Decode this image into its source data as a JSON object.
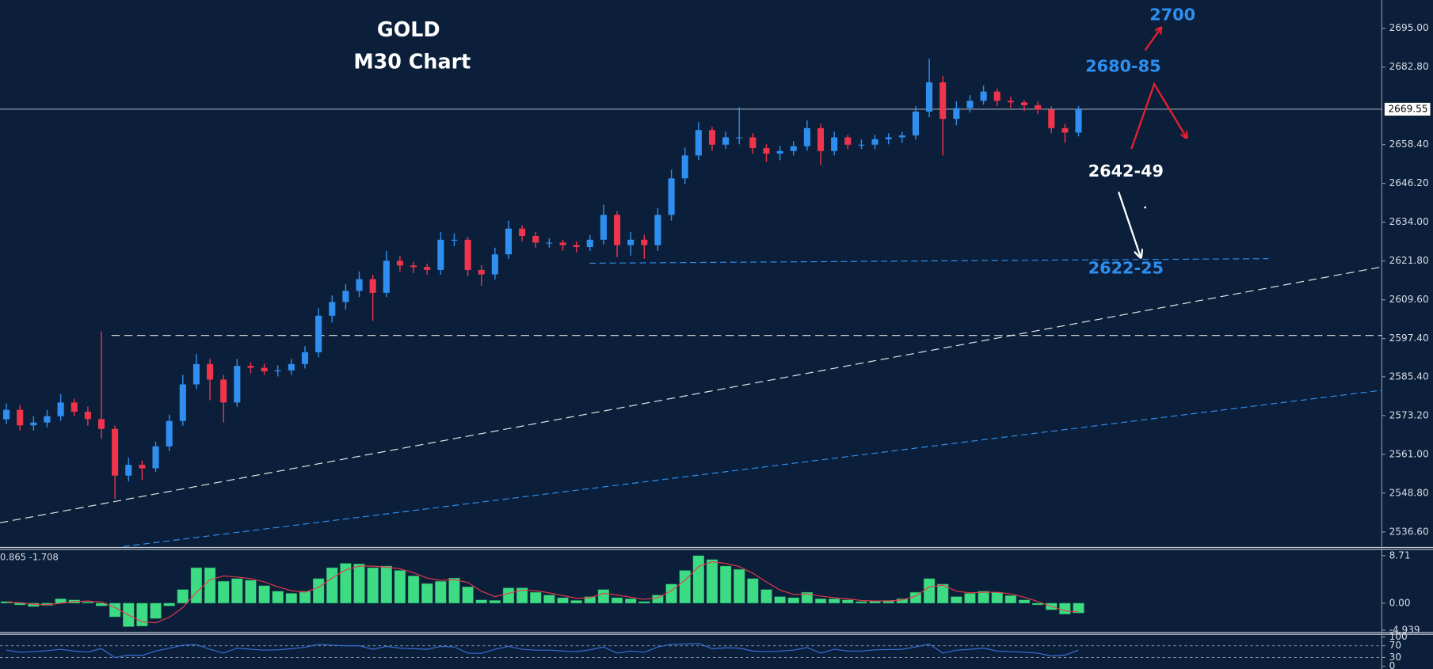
{
  "chart_data": [
    {
      "type": "candlestick",
      "title": "GOLD",
      "subtitle": "M30 Chart",
      "annotations": [
        "2700",
        "2680-85",
        "2642-49",
        "2622-25"
      ],
      "current_price": 2669.55,
      "up_color": "#2f8ff0",
      "down_color": "#f0344c",
      "open": [
        2572.0,
        2575.0,
        2570.1,
        2571.0,
        2573.0,
        2577.3,
        2574.4,
        2572.1,
        2569.0,
        2554.3,
        2557.7,
        2556.6,
        2563.5,
        2571.5,
        2583.0,
        2589.4,
        2584.5,
        2577.3,
        2588.8,
        2588.2,
        2587.1,
        2587.4,
        2589.4,
        2593.1,
        2604.6,
        2608.9,
        2612.4,
        2616.1,
        2611.8,
        2621.9,
        2620.4,
        2619.9,
        2619.0,
        2628.5,
        2628.5,
        2619.0,
        2617.6,
        2623.9,
        2632.0,
        2629.7,
        2627.6,
        2627.6,
        2626.8,
        2626.2,
        2628.5,
        2636.3,
        2626.8,
        2628.5,
        2626.8,
        2636.3,
        2647.8,
        2655.0,
        2663.0,
        2658.4,
        2660.7,
        2660.7,
        2657.3,
        2655.6,
        2656.4,
        2657.9,
        2663.6,
        2656.4,
        2660.7,
        2658.4,
        2658.4,
        2660.1,
        2660.7,
        2661.3,
        2668.8,
        2678.0,
        2666.5,
        2669.9,
        2672.2,
        2675.1,
        2672.2,
        2671.7,
        2670.8,
        2669.4,
        2663.6,
        2662.2
      ],
      "high": [
        2577.0,
        2576.5,
        2573.0,
        2575.0,
        2580.0,
        2578.5,
        2576.0,
        2599.7,
        2570.0,
        2560.0,
        2559.0,
        2565.0,
        2573.5,
        2586.0,
        2592.5,
        2591.0,
        2586.0,
        2591.0,
        2590.0,
        2589.5,
        2589.0,
        2591.0,
        2595.0,
        2607.0,
        2611.0,
        2614.5,
        2618.5,
        2617.5,
        2625.0,
        2623.5,
        2621.5,
        2621.0,
        2631.0,
        2630.5,
        2629.5,
        2620.5,
        2626.0,
        2634.5,
        2633.0,
        2631.0,
        2629.0,
        2628.5,
        2628.0,
        2630.0,
        2639.5,
        2637.5,
        2631.0,
        2630.0,
        2638.5,
        2650.5,
        2657.5,
        2665.5,
        2664.0,
        2662.5,
        2670.2,
        2662.0,
        2658.5,
        2658.0,
        2659.5,
        2666.0,
        2665.0,
        2662.5,
        2661.5,
        2660.0,
        2661.5,
        2662.0,
        2662.5,
        2670.5,
        2685.5,
        2680.0,
        2672.0,
        2674.0,
        2677.0,
        2676.0,
        2673.5,
        2672.5,
        2672.0,
        2670.5,
        2665.0,
        2670.5
      ],
      "low": [
        2570.5,
        2568.5,
        2568.5,
        2569.5,
        2571.5,
        2573.0,
        2570.0,
        2566.0,
        2547.0,
        2552.5,
        2553.0,
        2555.5,
        2562.0,
        2570.0,
        2581.5,
        2578.0,
        2571.0,
        2576.0,
        2586.5,
        2586.0,
        2585.5,
        2586.0,
        2588.0,
        2591.5,
        2602.5,
        2606.5,
        2610.5,
        2603.0,
        2610.5,
        2618.5,
        2618.0,
        2617.5,
        2617.5,
        2626.5,
        2617.0,
        2614.0,
        2616.0,
        2622.5,
        2628.0,
        2626.0,
        2626.0,
        2625.0,
        2624.5,
        2625.0,
        2627.0,
        2623.0,
        2623.5,
        2622.5,
        2625.0,
        2634.5,
        2646.0,
        2653.5,
        2656.5,
        2657.0,
        2658.5,
        2655.5,
        2653.0,
        2653.5,
        2655.0,
        2656.5,
        2652.0,
        2655.0,
        2657.0,
        2657.0,
        2657.0,
        2658.5,
        2659.0,
        2660.0,
        2667.0,
        2655.0,
        2664.5,
        2668.5,
        2671.0,
        2670.5,
        2670.0,
        2669.0,
        2668.0,
        2662.0,
        2659.0,
        2661.0
      ],
      "close": [
        2575.0,
        2570.1,
        2571.0,
        2573.0,
        2577.3,
        2574.4,
        2572.1,
        2569.0,
        2554.3,
        2557.7,
        2556.6,
        2563.5,
        2571.5,
        2583.0,
        2589.4,
        2584.5,
        2577.3,
        2588.8,
        2588.2,
        2587.1,
        2587.4,
        2589.4,
        2593.1,
        2604.6,
        2608.9,
        2612.4,
        2616.1,
        2611.8,
        2621.9,
        2620.4,
        2619.9,
        2619.0,
        2628.5,
        2628.5,
        2619.0,
        2617.6,
        2623.9,
        2632.0,
        2629.7,
        2627.6,
        2627.6,
        2626.8,
        2626.2,
        2628.5,
        2636.3,
        2626.8,
        2628.5,
        2626.8,
        2636.3,
        2647.8,
        2655.0,
        2663.0,
        2658.4,
        2660.7,
        2660.7,
        2657.3,
        2655.6,
        2656.4,
        2657.9,
        2663.6,
        2656.4,
        2660.7,
        2658.4,
        2658.4,
        2660.1,
        2660.7,
        2661.3,
        2668.8,
        2678.0,
        2666.5,
        2669.9,
        2672.2,
        2675.1,
        2672.2,
        2671.7,
        2670.8,
        2669.4,
        2663.6,
        2662.2,
        2669.5
      ],
      "ylim": [
        2532.0,
        2703.9
      ],
      "yticks": [
        {
          "value": 2695.0,
          "label": "2695.00"
        },
        {
          "value": 2682.8,
          "label": "2682.80"
        },
        {
          "value": 2658.4,
          "label": "2658.40"
        },
        {
          "value": 2646.2,
          "label": "2646.20"
        },
        {
          "value": 2634.0,
          "label": "2634.00"
        },
        {
          "value": 2621.8,
          "label": "2621.80"
        },
        {
          "value": 2609.6,
          "label": "2609.60"
        },
        {
          "value": 2597.4,
          "label": "2597.40"
        },
        {
          "value": 2585.4,
          "label": "2585.40"
        },
        {
          "value": 2573.2,
          "label": "2573.20"
        },
        {
          "value": 2561.0,
          "label": "2561.00"
        },
        {
          "value": 2548.8,
          "label": "2548.80"
        },
        {
          "value": 2536.6,
          "label": "2536.60"
        }
      ]
    },
    {
      "type": "macd",
      "label": "0.865 -1.708",
      "color": "#3ddc84",
      "signal_color": "#e8394a",
      "values": [
        0.3,
        -0.3,
        -0.6,
        -0.4,
        0.8,
        0.6,
        0.2,
        -0.5,
        -2.5,
        -4.3,
        -4.2,
        -2.8,
        -0.5,
        2.5,
        6.5,
        6.5,
        4.0,
        4.5,
        4.2,
        3.2,
        2.2,
        1.8,
        2.2,
        4.5,
        6.5,
        7.3,
        7.2,
        6.5,
        6.8,
        6.0,
        5.0,
        3.6,
        4.0,
        4.6,
        3.0,
        0.6,
        0.5,
        2.8,
        2.8,
        2.0,
        1.5,
        1.0,
        0.5,
        1.2,
        2.5,
        1.0,
        0.8,
        0.3,
        1.5,
        3.5,
        6.0,
        8.7,
        8.0,
        6.8,
        6.2,
        4.5,
        2.5,
        1.2,
        1.0,
        2.0,
        0.8,
        0.8,
        0.6,
        0.3,
        0.4,
        0.5,
        0.8,
        2.0,
        4.5,
        3.5,
        1.2,
        1.8,
        2.2,
        2.0,
        1.4,
        0.6,
        -0.3,
        -1.2,
        -2.0,
        -1.8
      ],
      "signal": [
        0.2,
        0.1,
        -0.2,
        -0.3,
        0.0,
        0.3,
        0.4,
        0.2,
        -0.8,
        -2.2,
        -3.4,
        -3.6,
        -2.6,
        -0.8,
        2.0,
        4.3,
        5.0,
        4.8,
        4.5,
        3.9,
        3.0,
        2.3,
        2.0,
        2.9,
        4.6,
        6.1,
        6.8,
        6.8,
        6.6,
        6.3,
        5.6,
        4.6,
        4.2,
        4.3,
        3.8,
        2.2,
        1.2,
        1.8,
        2.4,
        2.3,
        1.9,
        1.4,
        0.9,
        1.0,
        1.8,
        1.5,
        1.1,
        0.7,
        1.0,
        2.3,
        4.2,
        6.7,
        7.6,
        7.3,
        6.7,
        5.5,
        3.9,
        2.4,
        1.6,
        1.7,
        1.3,
        1.0,
        0.8,
        0.5,
        0.4,
        0.4,
        0.6,
        1.3,
        3.0,
        3.3,
        2.2,
        1.9,
        2.0,
        2.0,
        1.7,
        1.1,
        0.3,
        -0.6,
        -1.4,
        -1.6
      ],
      "ylim": [
        -5.36,
        9.88
      ],
      "yticks": [
        8.71,
        {
          "value": 0,
          "label": "0.00"
        },
        -4.939
      ]
    },
    {
      "type": "line",
      "color": "#3a6fd8",
      "values": [
        55,
        48,
        50,
        53,
        58,
        52,
        49,
        60,
        30,
        38,
        37,
        52,
        62,
        72,
        74,
        58,
        45,
        62,
        58,
        55,
        56,
        60,
        65,
        75,
        72,
        70,
        70,
        58,
        68,
        62,
        60,
        58,
        68,
        66,
        45,
        44,
        58,
        68,
        58,
        55,
        55,
        52,
        50,
        56,
        66,
        45,
        52,
        48,
        66,
        75,
        76,
        78,
        60,
        63,
        62,
        52,
        50,
        52,
        55,
        64,
        45,
        58,
        52,
        52,
        56,
        57,
        58,
        66,
        76,
        45,
        55,
        58,
        62,
        52,
        50,
        48,
        45,
        35,
        38,
        55
      ],
      "ylim": [
        0,
        100
      ],
      "yticks": [
        100,
        70,
        30,
        0
      ]
    }
  ]
}
